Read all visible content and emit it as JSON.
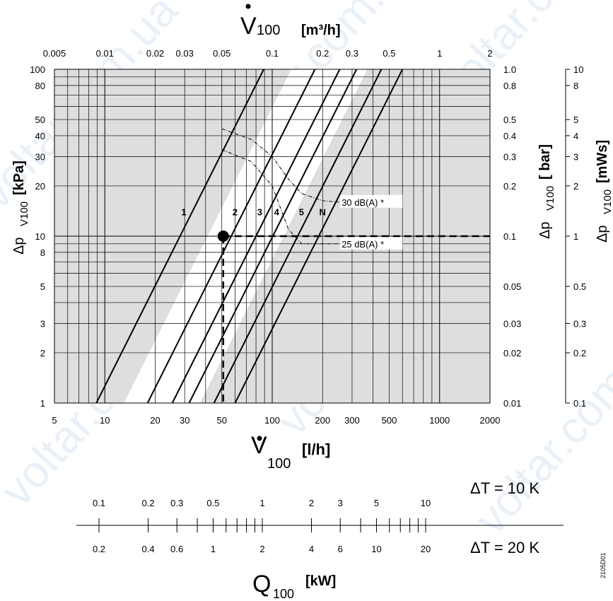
{
  "chart_data": {
    "type": "line",
    "scale": {
      "x": "log",
      "y": "log"
    },
    "x_range_lh": [
      5,
      2000
    ],
    "y_range_kpa": [
      1,
      100
    ],
    "x_axis_bottom": {
      "label_sym": "V",
      "label_sub": "100",
      "label_unit": "[l/h]",
      "ticks": [
        5,
        10,
        20,
        30,
        50,
        100,
        200,
        300,
        500,
        1000,
        2000
      ],
      "tick_labels": [
        "5",
        "10",
        "20",
        "30",
        "50",
        "100",
        "200",
        "300",
        "500",
        "1000",
        "2000"
      ]
    },
    "x_axis_top": {
      "label_sym": "V",
      "label_sub": "100",
      "label_unit": "[m³/h]",
      "ticks": [
        0.005,
        0.01,
        0.02,
        0.03,
        0.05,
        0.1,
        0.2,
        0.3,
        0.5,
        1,
        2
      ],
      "tick_labels": [
        "0.005",
        "0.01",
        "0.02",
        "0.03",
        "0.05",
        "0.1",
        "0.2",
        "0.3",
        "0.5",
        "1",
        "2"
      ]
    },
    "y_axis_left": {
      "label_main": "Δp",
      "label_sub": "V100",
      "label_unit": "[kPa]",
      "ticks": [
        1,
        2,
        3,
        5,
        8,
        10,
        20,
        30,
        40,
        50,
        80,
        100
      ],
      "tick_labels": [
        "1",
        "2",
        "3",
        "5",
        "8",
        "10",
        "20",
        "30",
        "40",
        "50",
        "80",
        "100"
      ]
    },
    "y_axis_right_bar": {
      "label_main": "Δp",
      "label_sub": "V100",
      "label_unit": "[ bar]",
      "ticks": [
        0.01,
        0.02,
        0.03,
        0.05,
        0.1,
        0.2,
        0.3,
        0.4,
        0.5,
        0.8,
        1.0
      ],
      "tick_labels": [
        "0.01",
        "0.02",
        "0.03",
        "0.05",
        "0.1",
        "0.2",
        "0.3",
        "0.4",
        "0.5",
        "0.8",
        "1.0"
      ]
    },
    "y_axis_right_mws": {
      "label_main": "Δp",
      "label_sub": "V100",
      "label_unit": "[mWs]",
      "ticks": [
        0.1,
        0.2,
        0.3,
        0.5,
        1,
        2,
        3,
        4,
        5,
        8,
        10
      ],
      "tick_labels": [
        "0.1",
        "0.2",
        "0.3",
        "0.5",
        "1",
        "2",
        "3",
        "4",
        "5",
        "8",
        "10"
      ]
    },
    "series": [
      {
        "name": "1",
        "x": [
          8.9,
          89
        ],
        "y": [
          1,
          100
        ]
      },
      {
        "name": "2",
        "x": [
          18,
          180
        ],
        "y": [
          1,
          100
        ]
      },
      {
        "name": "3",
        "x": [
          25.3,
          253
        ],
        "y": [
          1,
          100
        ]
      },
      {
        "name": "4",
        "x": [
          31.9,
          319
        ],
        "y": [
          1,
          100
        ]
      },
      {
        "name": "5",
        "x": [
          44.9,
          449
        ],
        "y": [
          1,
          100
        ]
      },
      {
        "name": "N",
        "x": [
          60,
          600
        ],
        "y": [
          1,
          100
        ]
      }
    ],
    "noise_curves": [
      {
        "name": "30 dB(A) *",
        "x": [
          50,
          75,
          100,
          125,
          150,
          200,
          250
        ],
        "y": [
          44,
          38,
          30,
          22,
          18,
          16.3,
          16
        ]
      },
      {
        "name": "25 dB(A) *",
        "x": [
          50,
          75,
          100,
          125,
          150,
          200,
          250
        ],
        "y": [
          33,
          28,
          20,
          11,
          9,
          9,
          9
        ]
      }
    ],
    "operating_point": {
      "x": 51,
      "y": 10
    },
    "q_scale": {
      "label_sym": "Q",
      "label_sub": "100",
      "label_unit": "[kW]",
      "dt10_label": "ΔT = 10 K",
      "dt20_label": "ΔT = 20 K",
      "dt10_kw": [
        0.1,
        0.2,
        0.3,
        0.5,
        1,
        2,
        3,
        5,
        10
      ],
      "dt10_tick_labels": [
        "0.1",
        "0.2",
        "0.3",
        "0.5",
        "1",
        "2",
        "3",
        "5",
        "10"
      ],
      "dt20_kw": [
        0.2,
        0.4,
        0.6,
        1,
        2,
        4,
        6,
        10,
        20
      ],
      "dt20_tick_labels": [
        "0.2",
        "0.4",
        "0.6",
        "1",
        "2",
        "4",
        "6",
        "10",
        "20"
      ]
    },
    "doc_code": "2105D01"
  },
  "watermark": "voltar.com.ua",
  "colors": {
    "band": "#dedede",
    "grid": "#000000",
    "watermark": "#cfe0ef"
  }
}
